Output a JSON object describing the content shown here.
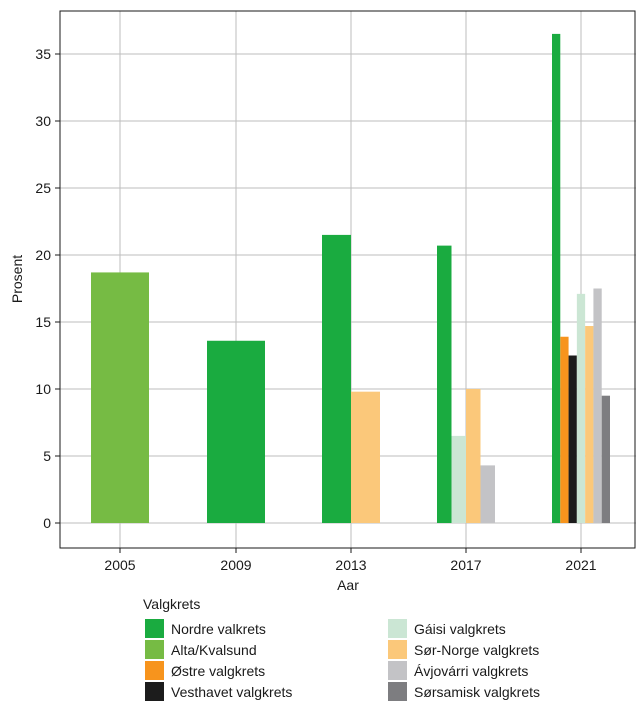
{
  "chart_data": {
    "type": "bar",
    "title": "",
    "xlabel": "Aar",
    "ylabel": "Prosent",
    "ylim": [
      0,
      37
    ],
    "yticks": [
      0,
      5,
      10,
      15,
      20,
      25,
      30,
      35
    ],
    "categories": [
      "2005",
      "2009",
      "2013",
      "2017",
      "2021"
    ],
    "grid": true,
    "legend": {
      "title": "Valgkrets",
      "placement": "bottom"
    },
    "series": [
      {
        "name": "Nordre valkrets",
        "color": "#1aab40",
        "values": [
          null,
          13.6,
          21.5,
          20.7,
          36.5
        ]
      },
      {
        "name": "Alta/Kvalsund",
        "color": "#76bb44",
        "values": [
          18.7,
          null,
          null,
          null,
          null
        ]
      },
      {
        "name": "Østre valgkrets",
        "color": "#f7941d",
        "values": [
          null,
          null,
          null,
          null,
          13.9
        ]
      },
      {
        "name": "Vesthavet valgkrets",
        "color": "#1c1c1c",
        "values": [
          null,
          null,
          null,
          null,
          12.5
        ]
      },
      {
        "name": "Gáisi valgkrets",
        "color": "#cbe6d4",
        "values": [
          null,
          null,
          null,
          6.5,
          17.1
        ]
      },
      {
        "name": "Sør-Norge valgkrets",
        "color": "#fbc87a",
        "values": [
          null,
          null,
          9.8,
          10.0,
          14.7
        ]
      },
      {
        "name": "Ávjovárri valgkrets",
        "color": "#c3c3c6",
        "values": [
          null,
          null,
          null,
          4.3,
          17.5
        ]
      },
      {
        "name": "Sørsamisk valgkrets",
        "color": "#7d7d80",
        "values": [
          null,
          null,
          null,
          null,
          9.5
        ]
      }
    ]
  }
}
